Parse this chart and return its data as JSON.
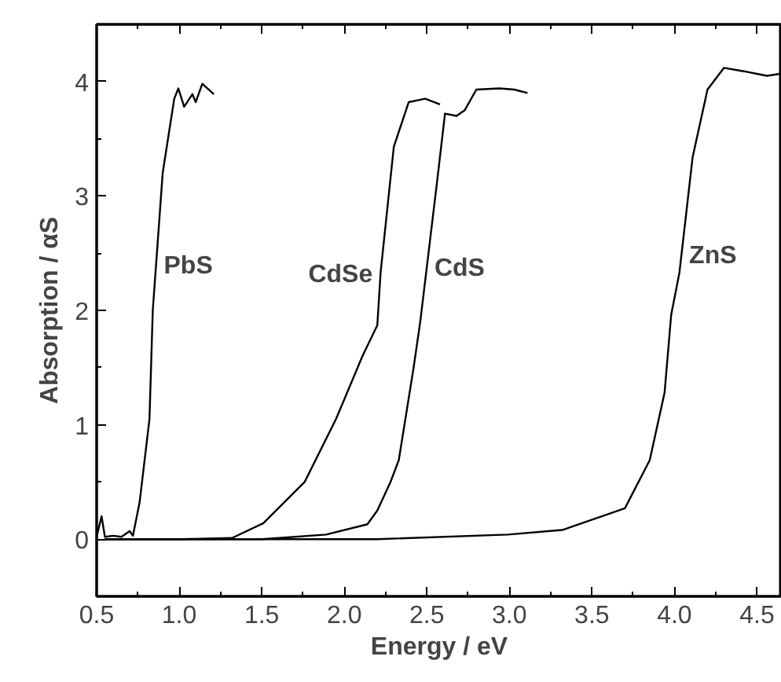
{
  "chart_data": {
    "type": "line",
    "xlabel": "Energy / eV",
    "ylabel": "Absorption / αS",
    "xlim": [
      0.5,
      4.65
    ],
    "ylim": [
      -0.5,
      4.5
    ],
    "xticks": [
      {
        "value": 0.5,
        "label": "0.5"
      },
      {
        "value": 1.0,
        "label": "1.0"
      },
      {
        "value": 1.5,
        "label": "1.5"
      },
      {
        "value": 2.0,
        "label": "2.0"
      },
      {
        "value": 2.5,
        "label": "2.5"
      },
      {
        "value": 3.0,
        "label": "3.0"
      },
      {
        "value": 3.5,
        "label": "3.5"
      },
      {
        "value": 4.0,
        "label": "4.0"
      },
      {
        "value": 4.5,
        "label": "4.5"
      }
    ],
    "yticks": [
      0,
      1,
      2,
      3,
      4
    ],
    "grid": false,
    "legend": false,
    "marker": "none",
    "line_style": "solid",
    "series": [
      {
        "name": "PbS",
        "color": "#000000",
        "x": [
          0.5,
          0.53,
          0.55,
          0.6,
          0.65,
          0.7,
          0.72,
          0.76,
          0.82,
          0.84,
          0.9,
          0.97,
          0.995,
          1.03,
          1.08,
          1.1,
          1.14,
          1.21
        ],
        "values": [
          0.02,
          0.2,
          0.02,
          0.03,
          0.02,
          0.07,
          0.03,
          0.32,
          1.05,
          2.0,
          3.2,
          3.85,
          3.94,
          3.78,
          3.89,
          3.82,
          3.98,
          3.89
        ]
      },
      {
        "name": "CdSe",
        "color": "#000000",
        "x": [
          0.55,
          1.0,
          1.32,
          1.51,
          1.76,
          1.95,
          2.11,
          2.2,
          2.22,
          2.3,
          2.39,
          2.49,
          2.58
        ],
        "values": [
          0.0,
          0.0,
          0.01,
          0.14,
          0.5,
          1.05,
          1.6,
          1.87,
          2.33,
          3.43,
          3.82,
          3.85,
          3.8
        ]
      },
      {
        "name": "CdS",
        "color": "#000000",
        "x": [
          0.55,
          1.5,
          1.89,
          2.14,
          2.2,
          2.28,
          2.33,
          2.42,
          2.46,
          2.56,
          2.61,
          2.68,
          2.73,
          2.8,
          2.94,
          3.03,
          3.11
        ],
        "values": [
          0.0,
          0.0,
          0.04,
          0.13,
          0.25,
          0.5,
          0.69,
          1.5,
          1.9,
          3.1,
          3.72,
          3.7,
          3.75,
          3.93,
          3.94,
          3.93,
          3.9
        ]
      },
      {
        "name": "ZnS",
        "color": "#000000",
        "x": [
          0.55,
          2.2,
          2.99,
          3.32,
          3.7,
          3.85,
          3.94,
          3.98,
          4.03,
          4.11,
          4.2,
          4.3,
          4.42,
          4.56,
          4.65
        ],
        "values": [
          0.0,
          0.0,
          0.04,
          0.08,
          0.27,
          0.69,
          1.28,
          1.96,
          2.33,
          3.34,
          3.93,
          4.12,
          4.09,
          4.05,
          4.07
        ]
      }
    ]
  }
}
